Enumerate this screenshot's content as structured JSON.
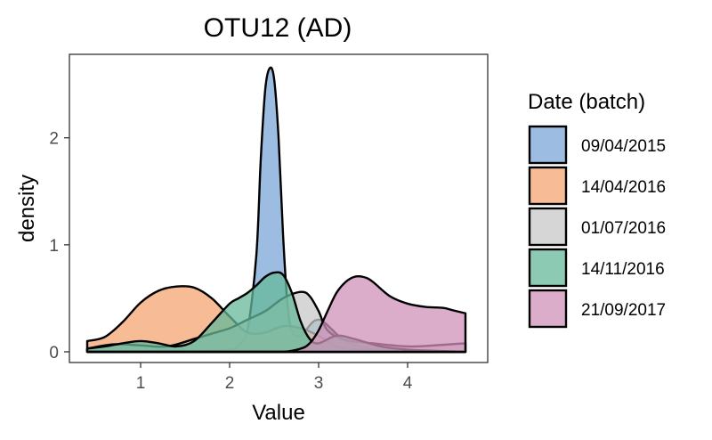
{
  "chart_data": {
    "type": "area",
    "title": "OTU12 (AD)",
    "xlabel": "Value",
    "ylabel": "density",
    "xlim": [
      0.2,
      4.9
    ],
    "ylim": [
      -0.1,
      2.78
    ],
    "x_ticks": [
      1,
      2,
      3,
      4
    ],
    "y_ticks": [
      0,
      1,
      2
    ],
    "grid": false,
    "legend": {
      "title": "Date (batch)",
      "position": "right"
    },
    "series": [
      {
        "name": "09/04/2015",
        "color": "#7ba7d7",
        "x": [
          0.4,
          1.0,
          1.5,
          2.0,
          2.1,
          2.2,
          2.3,
          2.35,
          2.4,
          2.45,
          2.5,
          2.55,
          2.6,
          2.65,
          2.7,
          2.8,
          3.0,
          3.3,
          3.6,
          4.0,
          4.3,
          4.65
        ],
        "y": [
          0.0,
          0.0,
          0.0,
          0.02,
          0.07,
          0.2,
          0.9,
          1.8,
          2.45,
          2.65,
          2.55,
          2.0,
          1.1,
          0.45,
          0.2,
          0.15,
          0.3,
          0.1,
          0.03,
          0.01,
          0.0,
          0.0
        ]
      },
      {
        "name": "14/04/2016",
        "color": "#f4a572",
        "x": [
          0.4,
          0.6,
          0.8,
          1.0,
          1.2,
          1.4,
          1.6,
          1.8,
          2.0,
          2.2,
          2.4,
          2.6,
          2.8,
          3.0,
          3.2,
          3.5,
          3.8,
          4.1,
          4.4,
          4.65
        ],
        "y": [
          0.1,
          0.14,
          0.28,
          0.46,
          0.57,
          0.61,
          0.6,
          0.5,
          0.33,
          0.18,
          0.18,
          0.24,
          0.22,
          0.15,
          0.05,
          0.02,
          0.01,
          0.0,
          0.0,
          0.0
        ]
      },
      {
        "name": "01/07/2016",
        "color": "#c8c8c8",
        "x": [
          0.4,
          0.7,
          1.0,
          1.3,
          1.6,
          1.8,
          2.0,
          2.2,
          2.4,
          2.6,
          2.8,
          2.9,
          3.0,
          3.1,
          3.3,
          3.6,
          4.0,
          4.3,
          4.65
        ],
        "y": [
          0.03,
          0.07,
          0.06,
          0.05,
          0.12,
          0.17,
          0.22,
          0.3,
          0.38,
          0.5,
          0.56,
          0.52,
          0.38,
          0.2,
          0.11,
          0.08,
          0.05,
          0.06,
          0.08
        ]
      },
      {
        "name": "14/11/2016",
        "color": "#66b89a",
        "x": [
          0.4,
          0.6,
          0.8,
          1.0,
          1.2,
          1.4,
          1.6,
          1.8,
          2.0,
          2.1,
          2.2,
          2.3,
          2.4,
          2.5,
          2.6,
          2.7,
          2.8,
          2.9,
          3.0,
          3.2,
          3.4,
          3.7,
          4.0,
          4.3,
          4.65
        ],
        "y": [
          0.03,
          0.05,
          0.08,
          0.1,
          0.08,
          0.05,
          0.1,
          0.27,
          0.45,
          0.5,
          0.55,
          0.62,
          0.7,
          0.74,
          0.72,
          0.55,
          0.28,
          0.12,
          0.08,
          0.15,
          0.12,
          0.05,
          0.02,
          0.01,
          0.0
        ]
      },
      {
        "name": "21/09/2017",
        "color": "#cf92b8",
        "x": [
          0.4,
          2.2,
          2.6,
          2.8,
          2.9,
          3.0,
          3.1,
          3.2,
          3.3,
          3.4,
          3.5,
          3.6,
          3.8,
          4.0,
          4.2,
          4.4,
          4.5,
          4.65
        ],
        "y": [
          0.0,
          0.0,
          0.0,
          0.03,
          0.08,
          0.2,
          0.38,
          0.55,
          0.65,
          0.7,
          0.7,
          0.66,
          0.52,
          0.45,
          0.42,
          0.41,
          0.39,
          0.36
        ]
      }
    ]
  }
}
